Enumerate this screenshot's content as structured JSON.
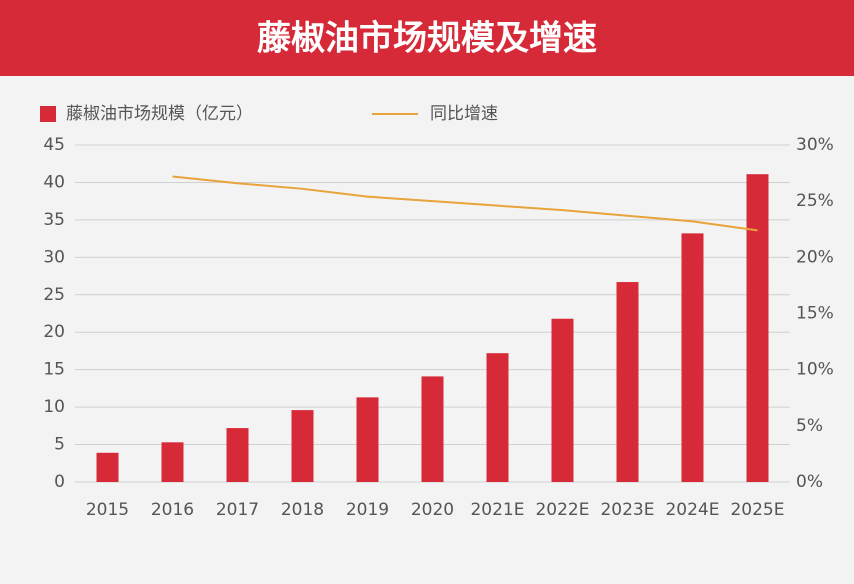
{
  "chart_data": {
    "type": "bar_line",
    "title": "藤椒油市场规模及增速",
    "categories": [
      "2015",
      "2016",
      "2017",
      "2018",
      "2019",
      "2020",
      "2021E",
      "2022E",
      "2023E",
      "2024E",
      "2025E"
    ],
    "series": [
      {
        "name": "藤椒油市场规模（亿元）",
        "color": "#d62a38",
        "type": "bar",
        "axis": "y",
        "values": [
          3.9,
          5.3,
          7.2,
          9.6,
          11.3,
          14.1,
          17.2,
          21.8,
          26.7,
          33.2,
          41.1
        ]
      },
      {
        "name": "同比增速",
        "color": "#e8a33a",
        "type": "line",
        "axis": "y2",
        "values": [
          null,
          27.2,
          26.6,
          26.1,
          25.4,
          25.0,
          24.6,
          24.2,
          23.7,
          23.2,
          22.4
        ]
      }
    ],
    "ylim": [
      0,
      45
    ],
    "yticks": [
      0,
      5,
      10,
      15,
      20,
      25,
      30,
      35,
      40,
      45
    ],
    "y2lim": [
      0,
      30
    ],
    "y2ticks": [
      {
        "value": 0,
        "label": "0%"
      },
      {
        "value": 5,
        "label": "5%"
      },
      {
        "value": 10,
        "label": "10%"
      },
      {
        "value": 15,
        "label": "15%"
      },
      {
        "value": 20,
        "label": "20%"
      },
      {
        "value": 25,
        "label": "25%"
      },
      {
        "value": 30,
        "label": "30%"
      }
    ],
    "grid": true,
    "legend": "top"
  }
}
